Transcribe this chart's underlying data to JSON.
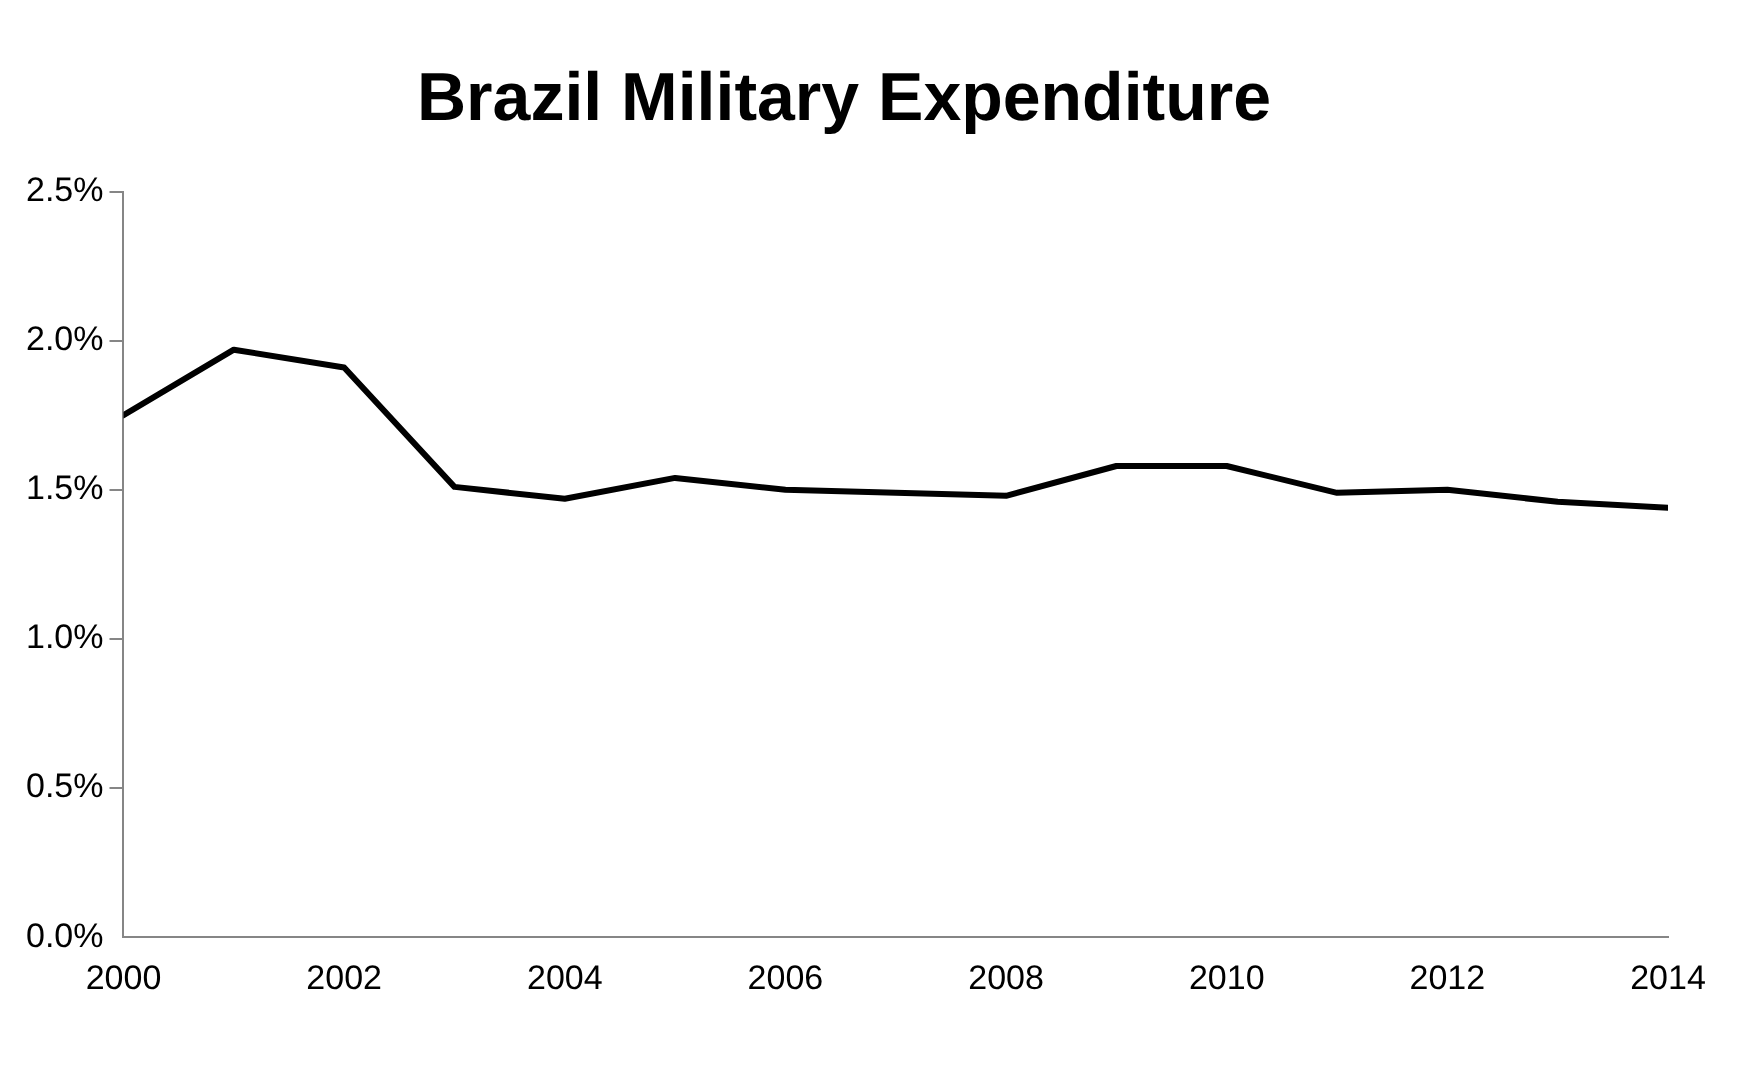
{
  "chart_data": {
    "type": "line",
    "title": "Brazil Military Expenditure",
    "x": [
      2000,
      2001,
      2002,
      2003,
      2004,
      2005,
      2006,
      2007,
      2008,
      2009,
      2010,
      2011,
      2012,
      2013,
      2014
    ],
    "series": [
      {
        "color": "#000000",
        "values": [
          1.75,
          1.97,
          1.91,
          1.51,
          1.47,
          1.54,
          1.5,
          1.49,
          1.48,
          1.58,
          1.58,
          1.49,
          1.5,
          1.46,
          1.44
        ]
      }
    ],
    "xlim": [
      2000,
      2014
    ],
    "xticks": [
      2000,
      2002,
      2004,
      2006,
      2008,
      2010,
      2012,
      2014
    ],
    "ylim": [
      0,
      2.5
    ],
    "yticks": [
      {
        "value": 0,
        "label": "0.0%"
      },
      {
        "value": 0.5,
        "label": "0.5%"
      },
      {
        "value": 1,
        "label": "1.0%"
      },
      {
        "value": 1.5,
        "label": "1.5%"
      },
      {
        "value": 2,
        "label": "2.0%"
      },
      {
        "value": 2.5,
        "label": "2.5%"
      }
    ],
    "grid": false,
    "legend": false,
    "marker": "none",
    "line_style": "solid"
  }
}
